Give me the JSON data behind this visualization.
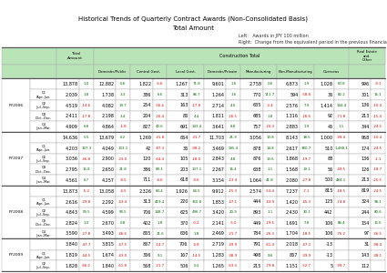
{
  "title1": "Historical Trends of Quarterly Contract Awards (Non-Consolidated Basis)",
  "title2": "Total Amount",
  "note_left": "Left:   Awards in JPY 100 million",
  "note_right": "Right:  Change from the equivalent period in the previous financial year (%)",
  "annual_rows": [
    {
      "label": "FY2006",
      "total": "13,878",
      "total_chg": "1.0",
      "ct": "12,882",
      "ct_chg": "0.6",
      "dg": "1,822",
      "dg_chg": "-6.6",
      "clg": "1,267",
      "clg_chg": "71.8",
      "lg": "866",
      "lg_chg": "62.6",
      "dp": "9,601",
      "dp_chg": "1.6",
      "mfg": "2,758",
      "mfg_chg": "0.6",
      "nm": "6,873",
      "nm_chg": "1.9",
      "ov": "1,028",
      "ov_chg": "60.8",
      "re": "996",
      "re_chg": "-9.1"
    },
    {
      "label": "FY2007",
      "total": "14,636",
      "total_chg": "5.5",
      "ct": "13,679",
      "ct_chg": "6.2",
      "dg": "1,269",
      "dg_chg": "-31.8",
      "clg": "864",
      "clg_chg": "-31.7",
      "lg": "275",
      "lg_chg": "-69.1",
      "dp": "11,703",
      "dp_chg": "21.9",
      "mfg": "3,056",
      "mfg_chg": "10.8",
      "nm": "8,143",
      "nm_chg": "18.5",
      "ov": "1,000",
      "ov_chg": "-99.4",
      "re": "958",
      "re_chg": "-10.4"
    },
    {
      "label": "FY2008",
      "total": "13,873",
      "total_chg": "-5.2",
      "ct": "13,058",
      "ct_chg": "-4.5",
      "dg": "2,326",
      "dg_chg": "83.4",
      "clg": "1,926",
      "clg_chg": "64.5",
      "lg": "692",
      "lg_chg": "115.8",
      "dp": "9,912",
      "dp_chg": "-15.3",
      "mfg": "2,574",
      "mfg_chg": "-53.4",
      "nm": "7,237",
      "nm_chg": "-7.1",
      "ov": "815",
      "ov_chg": "-18.5",
      "re": "819",
      "re_chg": "-24.5"
    },
    {
      "label": "FY2009",
      "total": "3,840",
      "total_chg": "-47.7",
      "ct": "3,815",
      "ct_chg": "-47.5",
      "dg": "867",
      "dg_chg": "-14.7",
      "clg": "706",
      "clg_chg": "-4.8",
      "lg": "391",
      "lg_chg": "-31.6",
      "dp": "2,719",
      "dp_chg": "-49.9",
      "mfg": "791",
      "mfg_chg": "-61.4",
      "nm": "2,018",
      "nm_chg": "-47.3",
      "ov": "-13",
      "ov_chg": "",
      "re": "31",
      "re_chg": "-98.4"
    }
  ],
  "quarterly_data": {
    "FY2006": [
      {
        "q": "Q1\n(Apr.-Jun.",
        "total": "2,039",
        "total_chg": "1.8",
        "ct": "1,738",
        "ct_chg": "3.3",
        "dg": "386",
        "dg_chg": "6.6",
        "clg": "313",
        "clg_chg": "86.7",
        "lg": "22",
        "lg_chg": "-84.6",
        "dp": "1,264",
        "dp_chg": "1.6",
        "mfg": "770",
        "mfg_chg": "111.7",
        "nm": "594",
        "nm_chg": "-58.8",
        "ov": "36",
        "ov_chg": "82.2",
        "re": "301",
        "re_chg": "16.1"
      },
      {
        "q": "Q2\n(Jul.-Sep.",
        "total": "4,519",
        "total_chg": "-14.6",
        "ct": "4,082",
        "ct_chg": "19.7",
        "dg": "254",
        "dg_chg": "-56.4",
        "clg": "163",
        "clg_chg": "-17.8",
        "lg": "80",
        "lg_chg": "-64.1",
        "dp": "2,714",
        "dp_chg": "4.0",
        "mfg": "635",
        "mfg_chg": "-3.4",
        "nm": "2,576",
        "nm_chg": "7.9",
        "ov": "1,414",
        "ov_chg": "144.4",
        "re": "136",
        "re_chg": "-10.4"
      },
      {
        "q": "Q3\n(Oct.-Dec.",
        "total": "2,411",
        "total_chg": "-17.8",
        "ct": "2,198",
        "ct_chg": "3.4",
        "dg": "204",
        "dg_chg": "-16.4",
        "clg": "86",
        "clg_chg": "4.4",
        "lg": "100",
        "lg_chg": "34.3",
        "dp": "1,811",
        "dp_chg": "-16.5",
        "mfg": "685",
        "mfg_chg": "1.8",
        "nm": "1,316",
        "nm_chg": "-26.6",
        "ov": "92",
        "ov_chg": "-71.8",
        "re": "213",
        "re_chg": "-15.4"
      },
      {
        "q": "Q4\n(Jan.-Mar.",
        "total": "4,909",
        "total_chg": "6.8",
        "ct": "4,864",
        "ct_chg": "-1.8",
        "dg": "827",
        "dg_chg": "43.6",
        "clg": "691",
        "clg_chg": "143.4",
        "lg": "135",
        "lg_chg": "-38.7",
        "dp": "3,641",
        "dp_chg": "8.8",
        "mfg": "757",
        "mfg_chg": "-20.3",
        "nm": "2,883",
        "nm_chg": "1.9",
        "ov": "45",
        "ov_chg": "1.1",
        "re": "344",
        "re_chg": "-24.1"
      }
    ],
    "FY2007": [
      {
        "q": "Q1\n(Apr.-Jun.",
        "total": "4,203",
        "total_chg": "107.3",
        "ct": "4,049",
        "ct_chg": "133.1",
        "dg": "42",
        "dg_chg": "-87.3",
        "clg": "36",
        "clg_chg": "-98.2",
        "lg": "6",
        "lg_chg": "-120.5",
        "dp": "3,469",
        "dp_chg": "195.4",
        "mfg": "878",
        "mfg_chg": "14.8",
        "nm": "2,617",
        "nm_chg": "380.7",
        "ov": "510",
        "ov_chg": "1,488.1",
        "re": "174",
        "re_chg": "-24.5"
      },
      {
        "q": "Q2\n(Jul.-Sep.",
        "total": "3,036",
        "total_chg": "-36.8",
        "ct": "2,900",
        "ct_chg": "-33.0",
        "dg": "120",
        "dg_chg": "-64.4",
        "clg": "105",
        "clg_chg": "-18.0",
        "lg": "14",
        "lg_chg": "-49.6",
        "dp": "2,843",
        "dp_chg": "4.8",
        "mfg": "876",
        "mfg_chg": "13.6",
        "nm": "1,868",
        "nm_chg": "-19.7",
        "ov": "88",
        "ov_chg": "",
        "re": "136",
        "re_chg": "-1.1"
      },
      {
        "q": "Q3\n(Oct.-Dec.",
        "total": "2,795",
        "total_chg": "15.8",
        "ct": "2,650",
        "ct_chg": "21.8",
        "dg": "386",
        "dg_chg": "89.1",
        "clg": "203",
        "clg_chg": "137.1",
        "lg": "166",
        "lg_chg": "52.1",
        "dp": "2,267",
        "dp_chg": "16.4",
        "mfg": "638",
        "mfg_chg": "1.1",
        "nm": "1,568",
        "nm_chg": "19.1",
        "ov": "56",
        "ov_chg": "-49.5",
        "re": "126",
        "re_chg": "-18.7"
      },
      {
        "q": "Q4\n(Jan.-Mar.",
        "total": "4,561",
        "total_chg": "6.7",
        "ct": "4,257",
        "ct_chg": "-8.5",
        "dg": "711",
        "dg_chg": "-8.6",
        "clg": "618",
        "clg_chg": "-9.6",
        "lg": "83",
        "lg_chg": "-37.1",
        "dp": "3,154",
        "dp_chg": "-13.4",
        "mfg": "1,064",
        "mfg_chg": "41.8",
        "nm": "2,080",
        "nm_chg": "-27.8",
        "ov": "500",
        "ov_chg": "484.1",
        "re": "213",
        "re_chg": "-25.5"
      }
    ],
    "FY2008": [
      {
        "q": "Q1\n(Apr.-Jun.",
        "total": "2,616",
        "total_chg": "-39.8",
        "ct": "2,292",
        "ct_chg": "-43.4",
        "dg": "313",
        "dg_chg": "419.4",
        "clg": "220",
        "clg_chg": "350.8",
        "lg": "40",
        "lg_chg": "1,049.4",
        "dp": "1,853",
        "dp_chg": "-47.1",
        "mfg": "444",
        "mfg_chg": "-43.9",
        "nm": "1,420",
        "nm_chg": "-45.3",
        "ov": "125",
        "ov_chg": "-74.8",
        "re": "324",
        "re_chg": "98.1"
      },
      {
        "q": "Q2\n(Jul.-Sep.",
        "total": "4,843",
        "total_chg": "59.5",
        "ct": "4,599",
        "ct_chg": "58.5",
        "dg": "706",
        "dg_chg": "148.7",
        "clg": "625",
        "clg_chg": "496.7",
        "lg": "200",
        "lg_chg": "1,049.4",
        "dp": "3,420",
        "dp_chg": "20.9",
        "mfg": "893",
        "mfg_chg": "1.1",
        "nm": "2,430",
        "nm_chg": "30.1",
        "ov": "442",
        "ov_chg": "",
        "re": "244",
        "re_chg": "80.6"
      },
      {
        "q": "Q3\n(Oct.-Dec.",
        "total": "2,824",
        "total_chg": "1.0",
        "ct": "2,670",
        "ct_chg": "0.8",
        "dg": "402",
        "dg_chg": "1.8",
        "clg": "370",
        "clg_chg": "-0.2",
        "lg": "196",
        "lg_chg": "18.5",
        "dp": "2,141",
        "dp_chg": "-5.0",
        "mfg": "449",
        "mfg_chg": "-29.5",
        "nm": "1,691",
        "nm_chg": "7.8",
        "ov": "106",
        "ov_chg": "86.4",
        "re": "154",
        "re_chg": "15.6"
      },
      {
        "q": "Q4\n(Jan.-Mar.",
        "total": "3,590",
        "total_chg": "-27.8",
        "ct": "3,493",
        "ct_chg": "-46.6",
        "dg": "865",
        "dg_chg": "21.6",
        "clg": "636",
        "clg_chg": "1.8",
        "lg": "306",
        "lg_chg": "143.5",
        "dp": "2,469",
        "dp_chg": "-21.7",
        "mfg": "784",
        "mfg_chg": "-26.3",
        "nm": "1,704",
        "nm_chg": "-18.5",
        "ov": "106",
        "ov_chg": "-76.2",
        "re": "97",
        "re_chg": "-36.5"
      }
    ],
    "FY2009": [
      {
        "q": "Q1\n(Apr.-Jun.",
        "total": "1,819",
        "total_chg": "-44.5",
        "ct": "1,674",
        "ct_chg": "-43.0",
        "dg": "366",
        "dg_chg": "9.1",
        "clg": "167",
        "clg_chg": "-14.5",
        "lg": "141",
        "lg_chg": "41.8",
        "dp": "1,283",
        "dp_chg": "-38.9",
        "mfg": "498",
        "mfg_chg": "9.6",
        "nm": "867",
        "nm_chg": "-39.9",
        "ov": "-13",
        "ov_chg": "",
        "re": "143",
        "re_chg": "-38.1"
      },
      {
        "q": "Q2\n(Jul.-Sep.",
        "total": "1,828",
        "total_chg": "-66.2",
        "ct": "1,840",
        "ct_chg": "-61.8",
        "dg": "568",
        "dg_chg": "-21.7",
        "clg": "506",
        "clg_chg": "0.3",
        "lg": "60",
        "lg_chg": "-70.6",
        "dp": "1,265",
        "dp_chg": "-63.3",
        "mfg": "215",
        "mfg_chg": "-79.8",
        "nm": "1,151",
        "nm_chg": "-52.7",
        "ov": "5",
        "ov_chg": "-99.7",
        "re": "112",
        "re_chg": ""
      }
    ]
  },
  "bg_header": "#b8e4b8",
  "text_neg": "#dd0000",
  "text_pos": "#006600",
  "border_thin": "#aaaaaa",
  "border_thick": "#555555"
}
